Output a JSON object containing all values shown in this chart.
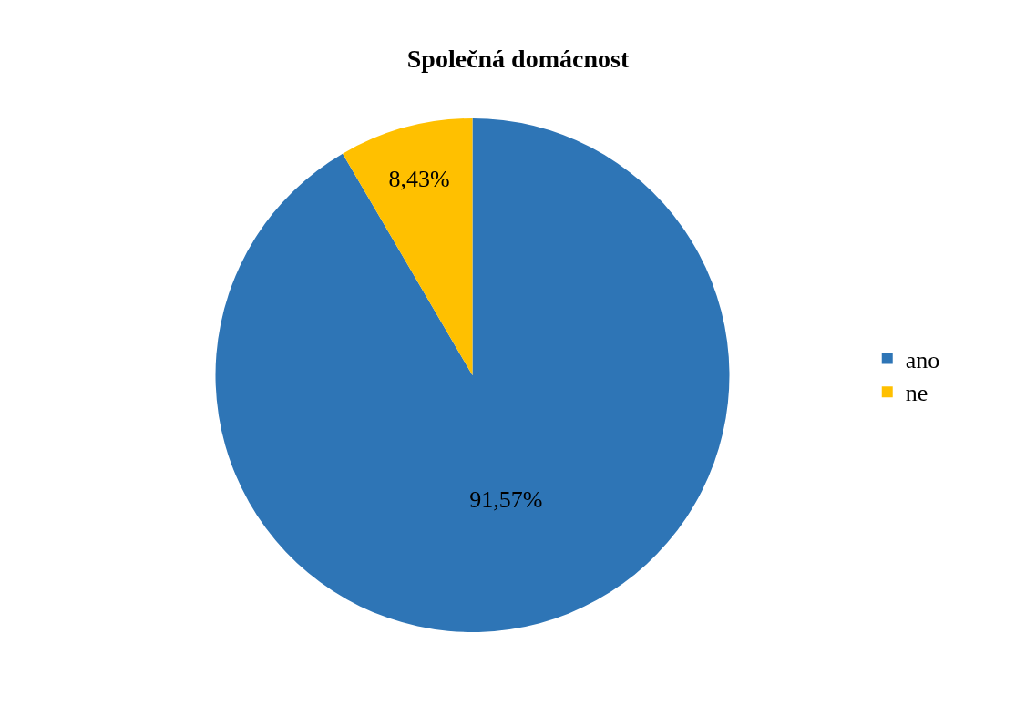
{
  "chart_data": {
    "type": "pie",
    "title": "Společná domácnost",
    "categories": [
      "ano",
      "ne"
    ],
    "values": [
      91.57,
      8.43
    ],
    "value_labels": [
      "91,57%",
      "8,43%"
    ],
    "colors": [
      "#2e75b6",
      "#ffc000"
    ],
    "legend": "right"
  }
}
